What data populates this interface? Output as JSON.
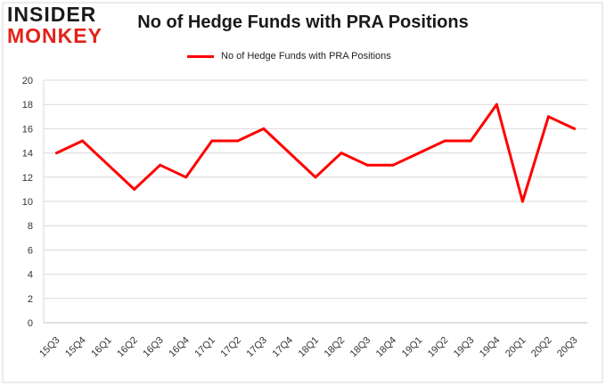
{
  "brand": {
    "line1": "INSIDER",
    "line2": "MONKEY"
  },
  "chart_data": {
    "type": "line",
    "title": "No of Hedge Funds with PRA Positions",
    "xlabel": "",
    "ylabel": "",
    "ylim": [
      0,
      20
    ],
    "yticks": [
      0,
      2,
      4,
      6,
      8,
      10,
      12,
      14,
      16,
      18,
      20
    ],
    "grid": true,
    "legend_position": "top",
    "categories": [
      "15Q3",
      "15Q4",
      "16Q1",
      "16Q2",
      "16Q3",
      "16Q4",
      "17Q1",
      "17Q2",
      "17Q3",
      "17Q4",
      "18Q1",
      "18Q2",
      "18Q3",
      "18Q4",
      "19Q1",
      "19Q2",
      "19Q3",
      "19Q4",
      "20Q1",
      "20Q2",
      "20Q3"
    ],
    "series": [
      {
        "name": "No of Hedge Funds with PRA Positions",
        "color": "#ff0000",
        "values": [
          14,
          15,
          13,
          11,
          13,
          12,
          15,
          15,
          16,
          14,
          12,
          14,
          13,
          13,
          14,
          15,
          15,
          18,
          10,
          17,
          16
        ]
      }
    ]
  }
}
